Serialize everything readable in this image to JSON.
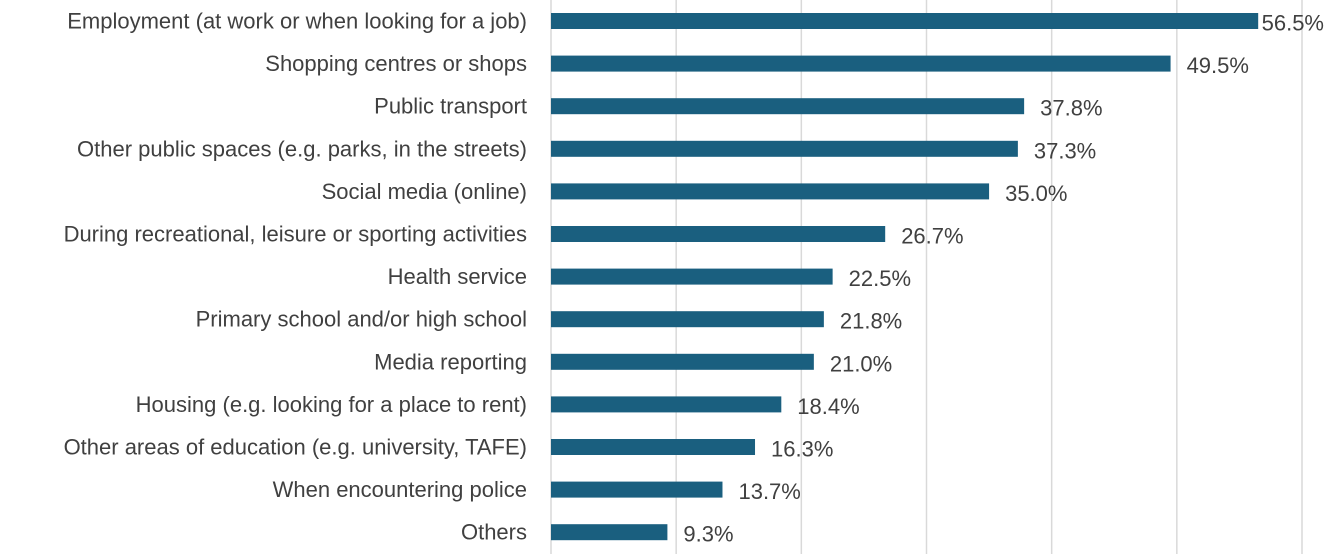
{
  "chart_data": {
    "type": "bar",
    "orientation": "horizontal",
    "categories": [
      "Employment (at work or when looking for a job)",
      "Shopping centres or shops",
      "Public transport",
      "Other public spaces (e.g. parks, in the streets)",
      "Social media (online)",
      "During recreational, leisure or sporting activities",
      "Health service",
      "Primary school and/or high school",
      "Media reporting",
      "Housing (e.g. looking for a place to rent)",
      "Other areas of education (e.g. university, TAFE)",
      "When encountering police",
      "Others"
    ],
    "values": [
      56.5,
      49.5,
      37.8,
      37.3,
      35.0,
      26.7,
      22.5,
      21.8,
      21.0,
      18.4,
      16.3,
      13.7,
      9.3
    ],
    "value_labels": [
      "56.5%",
      "49.5%",
      "37.8%",
      "37.3%",
      "35.0%",
      "26.7%",
      "22.5%",
      "21.8%",
      "21.0%",
      "18.4%",
      "16.3%",
      "13.7%",
      "9.3%"
    ],
    "xlim": [
      0,
      60
    ],
    "x_gridlines": [
      0,
      10,
      20,
      30,
      40,
      50,
      60
    ],
    "grid": true,
    "legend": "none",
    "title": "",
    "xlabel": "",
    "ylabel": "",
    "colors": {
      "bar": "#1a5f7f",
      "gridline": "#d9d9d9",
      "text": "#404040"
    }
  }
}
